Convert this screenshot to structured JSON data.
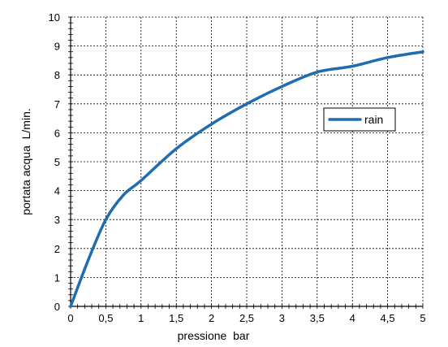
{
  "chart_data": {
    "type": "line",
    "title": "",
    "xlabel": "pressione  bar",
    "ylabel": "portata acqua  L/min.",
    "xlim": [
      0,
      5
    ],
    "ylim": [
      0,
      10
    ],
    "x_ticks": [
      0,
      0.5,
      1,
      1.5,
      2,
      2.5,
      3,
      3.5,
      4,
      4.5,
      5
    ],
    "x_tick_labels": [
      "0",
      "0,5",
      "1",
      "1,5",
      "2",
      "2,5",
      "3",
      "3,5",
      "4",
      "4,5",
      "5"
    ],
    "y_ticks": [
      0,
      1,
      2,
      3,
      4,
      5,
      6,
      7,
      8,
      9,
      10
    ],
    "y_tick_labels": [
      "0",
      "1",
      "2",
      "3",
      "4",
      "5",
      "6",
      "7",
      "8",
      "9",
      "10"
    ],
    "grid": true,
    "grid_style": "dashed",
    "legend_position": "right, upper-middle",
    "series": [
      {
        "name": "rain",
        "color": "#1F6DB0",
        "x": [
          0,
          0.25,
          0.5,
          0.75,
          1,
          1.5,
          2,
          2.5,
          3,
          3.5,
          4,
          4.5,
          5
        ],
        "y": [
          0,
          1.6,
          3.0,
          3.85,
          4.35,
          5.45,
          6.3,
          7.0,
          7.6,
          8.1,
          8.3,
          8.6,
          8.8
        ]
      }
    ]
  }
}
